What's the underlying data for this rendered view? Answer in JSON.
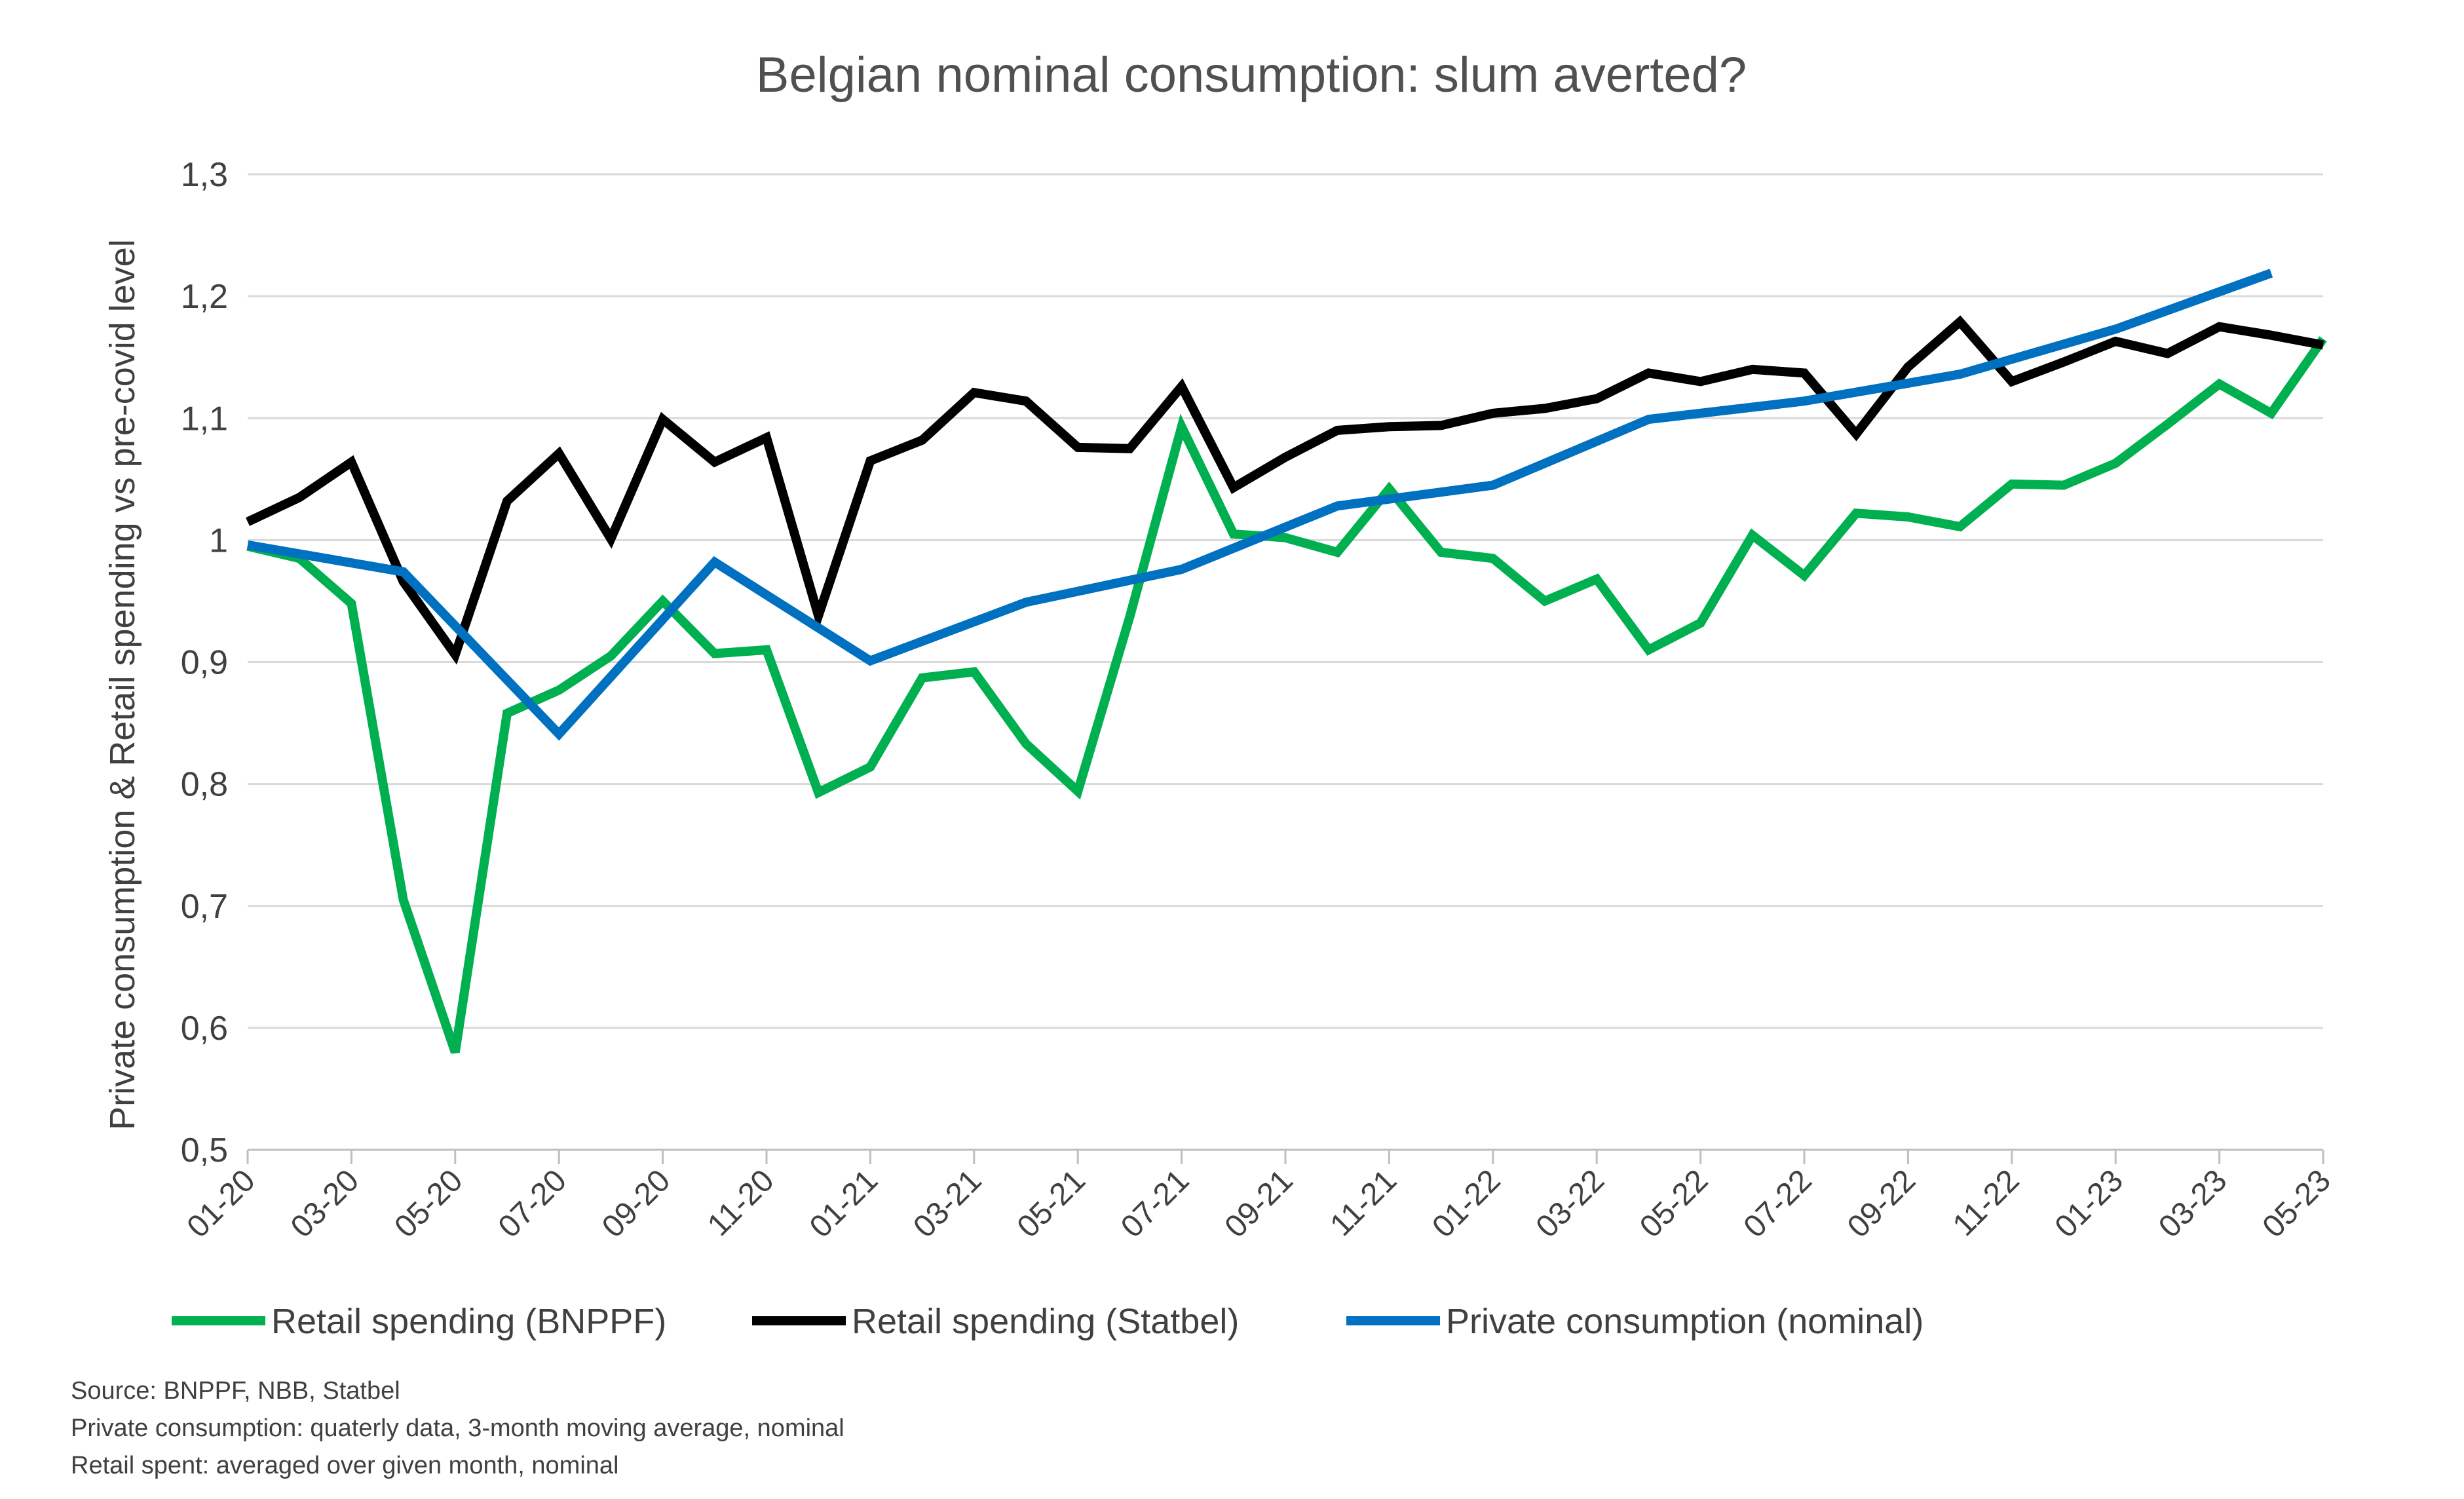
{
  "chart_data": {
    "type": "line",
    "title": "Belgian nominal consumption: slum averted?",
    "xlabel": "",
    "ylabel": "Private consumption & Retail spending vs pre-covid level",
    "ylim": [
      0.5,
      1.3
    ],
    "yticks": [
      "0,5",
      "0,6",
      "0,7",
      "0,8",
      "0,9",
      "1",
      "1,1",
      "1,2",
      "1,3"
    ],
    "yticks_values": [
      0.5,
      0.6,
      0.7,
      0.8,
      0.9,
      1.0,
      1.1,
      1.2,
      1.3
    ],
    "x_categories": [
      "01-20",
      "03-20",
      "05-20",
      "07-20",
      "09-20",
      "11-20",
      "01-21",
      "03-21",
      "05-21",
      "07-21",
      "09-21",
      "11-21",
      "01-22",
      "03-22",
      "05-22",
      "07-22",
      "09-22",
      "11-22",
      "01-23",
      "03-23",
      "05-23"
    ],
    "x_range_months": [
      "01-20",
      "05-23"
    ],
    "grid": true,
    "legend_position": "bottom",
    "series": [
      {
        "name": "Retail spending (BNPPF)",
        "color": "#00b050",
        "points": [
          [
            "01-20",
            0.995
          ],
          [
            "02-20",
            0.985
          ],
          [
            "03-20",
            0.948
          ],
          [
            "04-20",
            0.705
          ],
          [
            "05-20",
            0.58
          ],
          [
            "06-20",
            0.858
          ],
          [
            "07-20",
            0.877
          ],
          [
            "08-20",
            0.905
          ],
          [
            "09-20",
            0.95
          ],
          [
            "10-20",
            0.907
          ],
          [
            "11-20",
            0.91
          ],
          [
            "12-20",
            0.793
          ],
          [
            "01-21",
            0.814
          ],
          [
            "02-21",
            0.887
          ],
          [
            "03-21",
            0.892
          ],
          [
            "04-21",
            0.833
          ],
          [
            "05-21",
            0.794
          ],
          [
            "06-21",
            0.937
          ],
          [
            "07-21",
            1.093
          ],
          [
            "08-21",
            1.005
          ],
          [
            "09-21",
            1.002
          ],
          [
            "10-21",
            0.99
          ],
          [
            "11-21",
            1.042
          ],
          [
            "12-21",
            0.99
          ],
          [
            "01-22",
            0.985
          ],
          [
            "02-22",
            0.95
          ],
          [
            "03-22",
            0.968
          ],
          [
            "04-22",
            0.91
          ],
          [
            "05-22",
            0.932
          ],
          [
            "06-22",
            1.004
          ],
          [
            "07-22",
            0.971
          ],
          [
            "08-22",
            1.022
          ],
          [
            "09-22",
            1.019
          ],
          [
            "10-22",
            1.011
          ],
          [
            "11-22",
            1.046
          ],
          [
            "12-22",
            1.045
          ],
          [
            "01-23",
            1.063
          ],
          [
            "02-23",
            1.095
          ],
          [
            "03-23",
            1.128
          ],
          [
            "04-23",
            1.104
          ],
          [
            "05-23",
            1.165
          ]
        ]
      },
      {
        "name": "Retail spending (Statbel)",
        "color": "#000000",
        "points": [
          [
            "01-20",
            1.015
          ],
          [
            "02-20",
            1.035
          ],
          [
            "03-20",
            1.064
          ],
          [
            "04-20",
            0.966
          ],
          [
            "05-20",
            0.906
          ],
          [
            "06-20",
            1.032
          ],
          [
            "07-20",
            1.071
          ],
          [
            "08-20",
            1.001
          ],
          [
            "09-20",
            1.099
          ],
          [
            "10-20",
            1.064
          ],
          [
            "11-20",
            1.084
          ],
          [
            "12-20",
            0.938
          ],
          [
            "01-21",
            1.065
          ],
          [
            "02-21",
            1.082
          ],
          [
            "03-21",
            1.121
          ],
          [
            "04-21",
            1.114
          ],
          [
            "05-21",
            1.076
          ],
          [
            "06-21",
            1.075
          ],
          [
            "07-21",
            1.126
          ],
          [
            "08-21",
            1.043
          ],
          [
            "09-21",
            1.068
          ],
          [
            "10-21",
            1.09
          ],
          [
            "11-21",
            1.093
          ],
          [
            "12-21",
            1.094
          ],
          [
            "01-22",
            1.104
          ],
          [
            "02-22",
            1.108
          ],
          [
            "03-22",
            1.116
          ],
          [
            "04-22",
            1.137
          ],
          [
            "05-22",
            1.13
          ],
          [
            "06-22",
            1.14
          ],
          [
            "07-22",
            1.137
          ],
          [
            "08-22",
            1.087
          ],
          [
            "09-22",
            1.142
          ],
          [
            "10-22",
            1.179
          ],
          [
            "11-22",
            1.13
          ],
          [
            "12-22",
            1.146
          ],
          [
            "01-23",
            1.163
          ],
          [
            "02-23",
            1.153
          ],
          [
            "03-23",
            1.175
          ],
          [
            "04-23",
            1.168
          ],
          [
            "05-23",
            1.16
          ]
        ]
      },
      {
        "name": "Private consumption (nominal)",
        "color": "#0070c0",
        "points": [
          [
            "01-20",
            0.996
          ],
          [
            "04-20",
            0.974
          ],
          [
            "07-20",
            0.841
          ],
          [
            "10-20",
            0.982
          ],
          [
            "01-21",
            0.901
          ],
          [
            "04-21",
            0.949
          ],
          [
            "07-21",
            0.976
          ],
          [
            "10-21",
            1.028
          ],
          [
            "01-22",
            1.045
          ],
          [
            "04-22",
            1.099
          ],
          [
            "07-22",
            1.114
          ],
          [
            "10-22",
            1.136
          ],
          [
            "01-23",
            1.173
          ],
          [
            "04-23",
            1.219
          ]
        ]
      }
    ]
  },
  "notes": [
    "Source: BNPPF, NBB, Statbel",
    "Private consumption: quaterly data, 3-month moving average, nominal",
    "Retail spent: averaged over given month, nominal"
  ]
}
